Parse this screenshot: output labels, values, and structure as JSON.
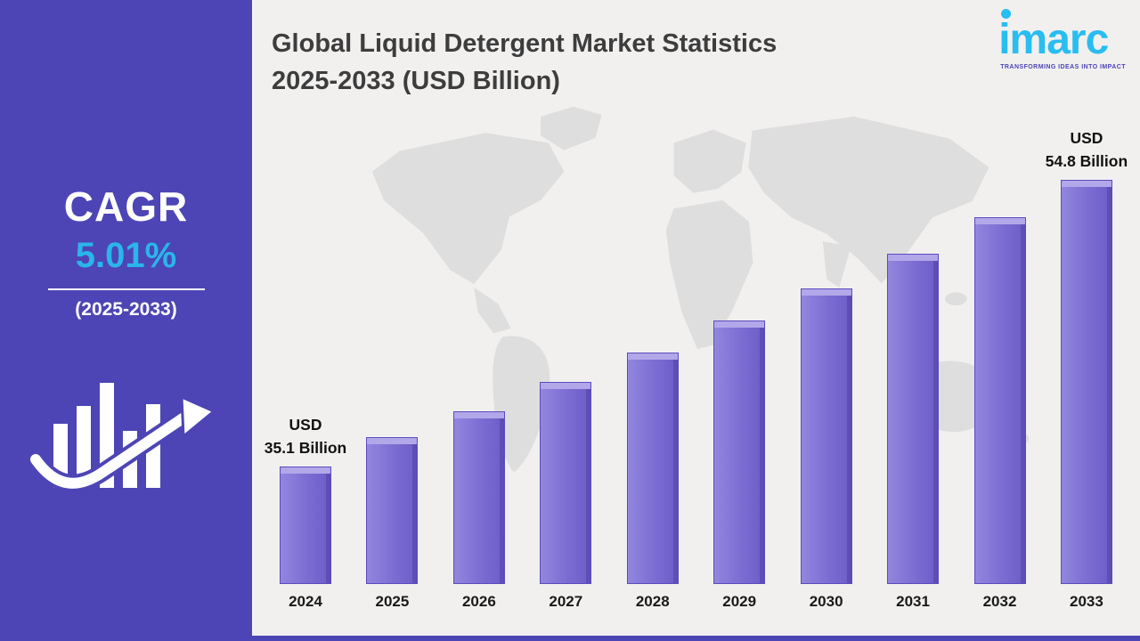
{
  "sidebar": {
    "cagr_label": "CAGR",
    "cagr_value": "5.01%",
    "cagr_period": "(2025-2033)",
    "panel_color": "#4D45B5",
    "accent_color": "#2AB6EA",
    "growth_icon": "bar-chart-with-up-arrow-icon"
  },
  "header": {
    "title_line1": "Global Liquid Detergent Market Statistics",
    "title_line2": "2025-2033 (USD Billion)"
  },
  "logo": {
    "brand": "imarc",
    "tagline": "TRANSFORMING IDEAS INTO IMPACT",
    "brand_color": "#29BDF0",
    "tagline_color": "#4D45B5"
  },
  "chart_data": {
    "type": "bar",
    "title": "Global Liquid Detergent Market Statistics 2025-2033 (USD Billion)",
    "unit": "USD Billion",
    "categories": [
      "2024",
      "2025",
      "2026",
      "2027",
      "2028",
      "2029",
      "2030",
      "2031",
      "2032",
      "2033"
    ],
    "values": [
      35.1,
      37.1,
      38.9,
      40.9,
      42.9,
      45.1,
      47.3,
      49.7,
      52.2,
      54.8
    ],
    "bar_color": "#7B6CD2",
    "bar_top_color": "#B2A7E9",
    "ylim": [
      0,
      60
    ],
    "grid": false,
    "legend": false,
    "annotations": [
      {
        "index": 0,
        "lines": [
          "USD",
          "35.1 Billion"
        ]
      },
      {
        "index": 9,
        "lines": [
          "USD",
          "54.8 Billion"
        ]
      }
    ]
  }
}
